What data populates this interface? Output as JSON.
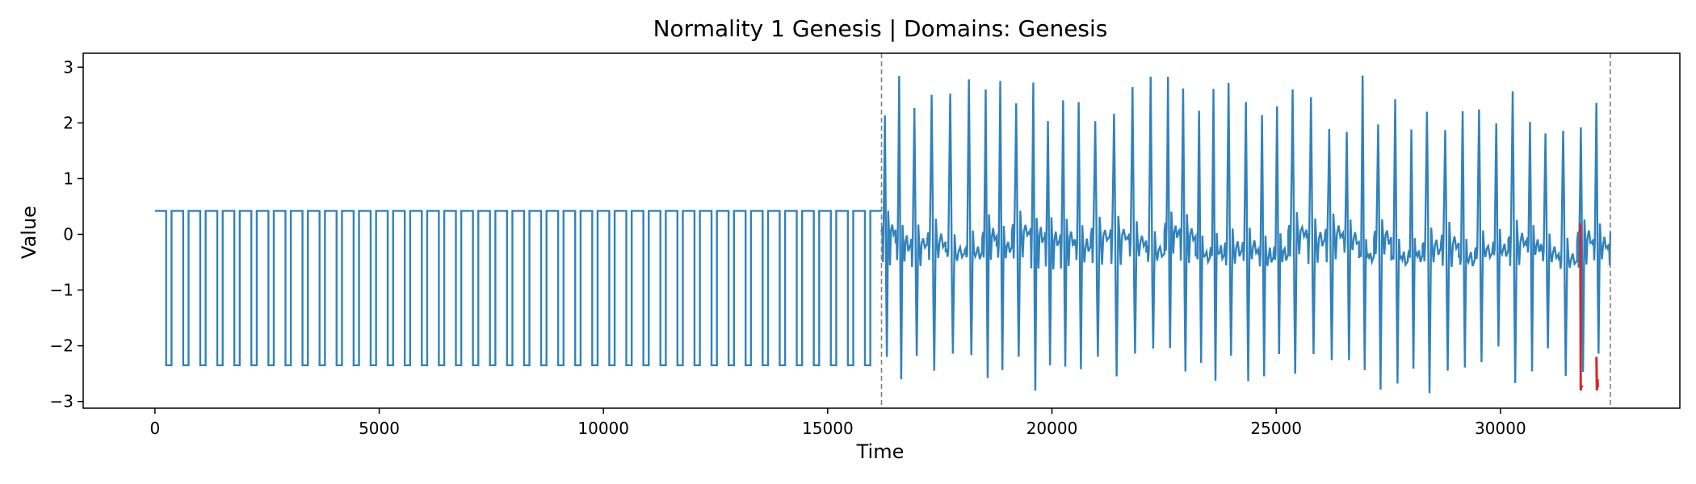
{
  "chart_data": {
    "type": "line",
    "title": "Normality 1 Genesis  |  Domains: Genesis",
    "xlabel": "Time",
    "ylabel": "Value",
    "xlim": [
      -1600,
      34000
    ],
    "ylim": [
      -3.12,
      3.25
    ],
    "x_ticks": [
      0,
      5000,
      10000,
      15000,
      20000,
      25000,
      30000
    ],
    "y_ticks": [
      -3,
      -2,
      -1,
      0,
      1,
      2,
      3
    ],
    "x_tick_labels": [
      "0",
      "5000",
      "10000",
      "15000",
      "20000",
      "25000",
      "30000"
    ],
    "y_tick_labels": [
      "−3",
      "−2",
      "−1",
      "0",
      "1",
      "2",
      "3"
    ],
    "grid": false,
    "legend": "none",
    "domain_boundaries": [
      16200,
      32450
    ],
    "series": [
      {
        "color": "#3182bd",
        "segments": [
          {
            "x_start": 0,
            "x_end": 16200,
            "pattern": "square-pulse",
            "baseline": 0.42,
            "low": -2.35,
            "pulse_start": 250,
            "pulse_period": 380,
            "pulse_width": 120
          },
          {
            "x_start": 16200,
            "x_end": 32450,
            "pattern": "oscillation",
            "baseline": 0.05,
            "cycle_period": 370,
            "peak_high_range": [
              1.8,
              2.9
            ],
            "trough_low_range": [
              -2.0,
              -2.85
            ],
            "rest_level_range": [
              -0.45,
              0.1
            ]
          }
        ]
      },
      {
        "color": "#d62728",
        "segments": [
          {
            "x": [
              31780,
              31790,
              31800,
              31830
            ],
            "y": [
              0.2,
              -2.8,
              -2.72,
              -2.75
            ]
          },
          {
            "x": [
              32140,
              32150,
              32165,
              32170
            ],
            "y": [
              -2.2,
              -2.8,
              -2.6,
              -2.75
            ]
          }
        ]
      }
    ]
  }
}
